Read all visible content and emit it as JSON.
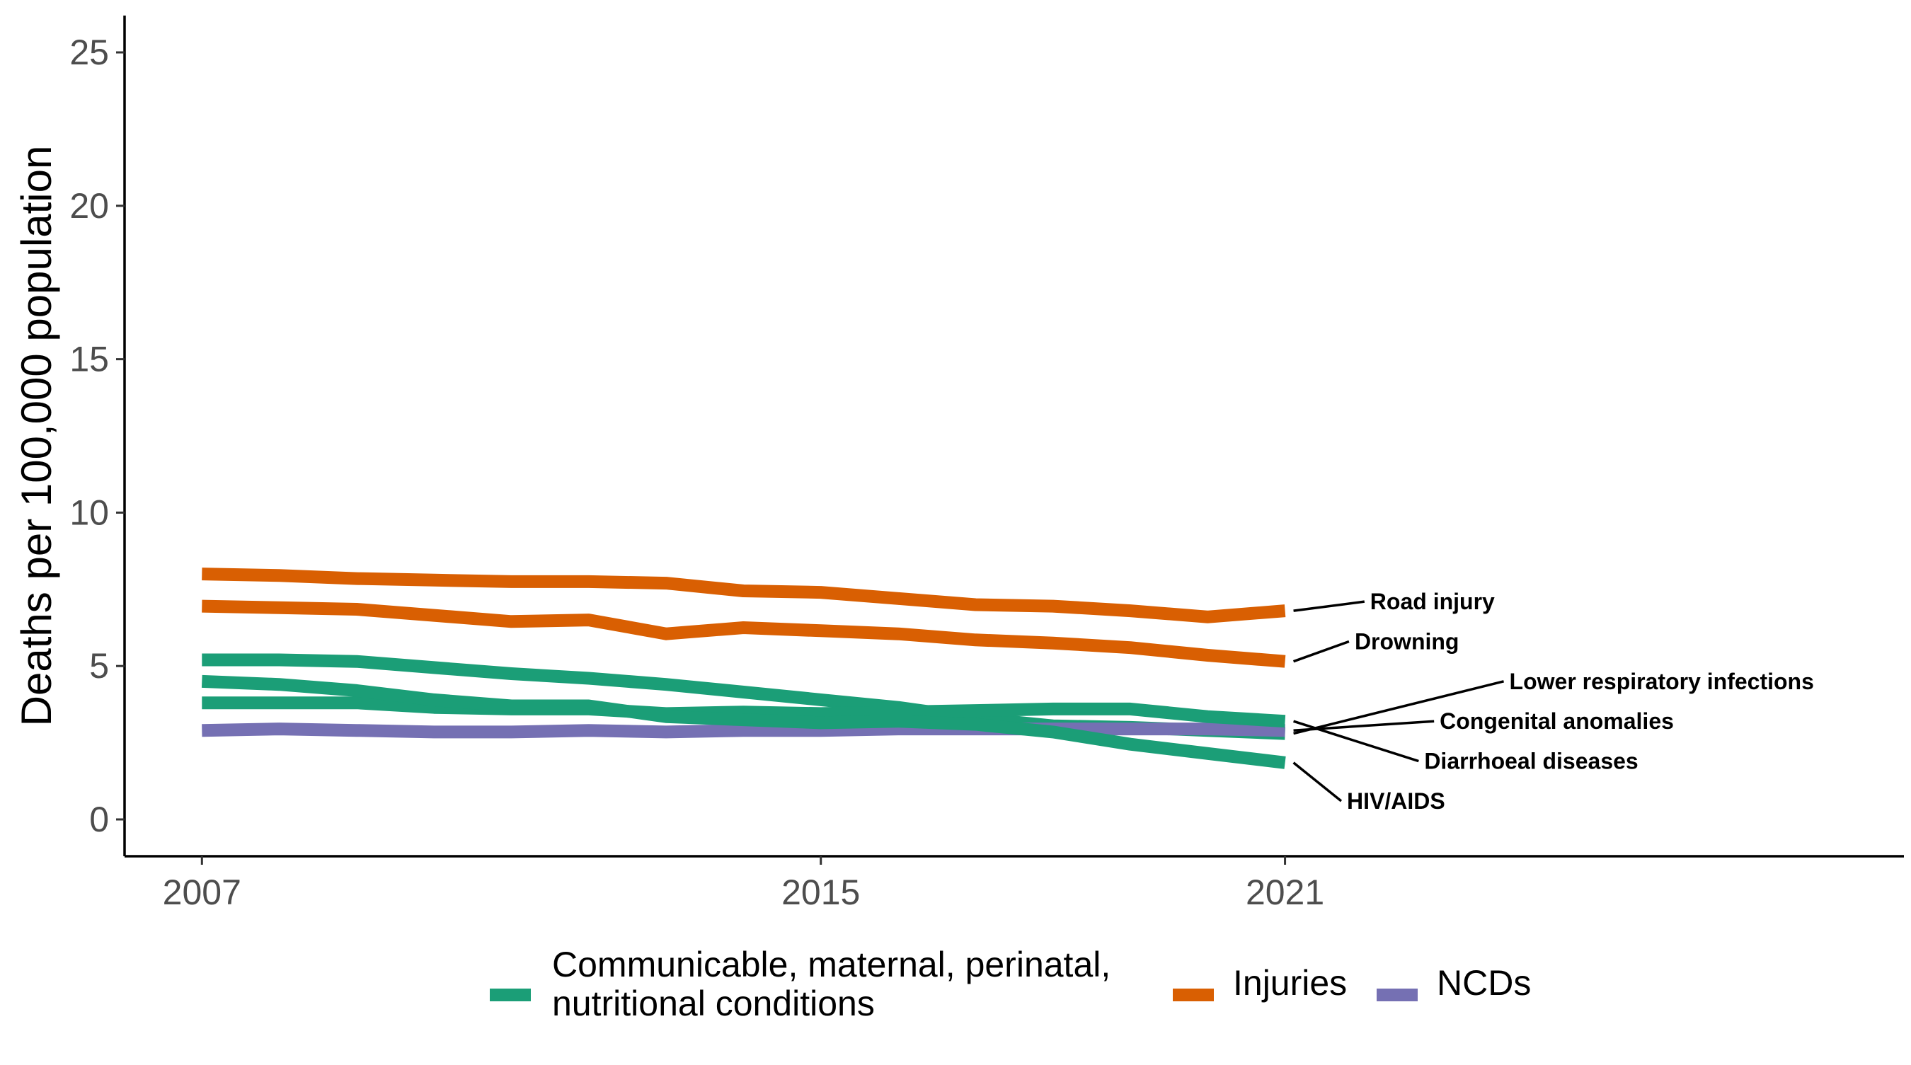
{
  "chart_data": {
    "type": "line",
    "title": "",
    "xlabel": "",
    "ylabel": "Deaths per 100,000 population",
    "x_ticks": [
      2007,
      2015,
      2021
    ],
    "y_ticks": [
      0,
      5,
      10,
      15,
      20,
      25
    ],
    "xlim": [
      2006,
      2029
    ],
    "ylim": [
      -1.2,
      26.2
    ],
    "grid": false,
    "legend_position": "bottom",
    "colors": {
      "communicable": "#1b9e77",
      "injuries": "#d95f02",
      "ncds": "#7570b3"
    },
    "legend": [
      {
        "group": "communicable",
        "label_line1": "Communicable, maternal, perinatal,",
        "label_line2": "nutritional conditions"
      },
      {
        "group": "injuries",
        "label_line1": "Injuries",
        "label_line2": ""
      },
      {
        "group": "ncds",
        "label_line1": "NCDs",
        "label_line2": ""
      }
    ],
    "x": [
      2007,
      2008,
      2009,
      2010,
      2011,
      2012,
      2013,
      2014,
      2015,
      2016,
      2017,
      2018,
      2019,
      2020,
      2021
    ],
    "series": [
      {
        "name": "Road injury",
        "group": "injuries",
        "values": [
          8.0,
          7.95,
          7.85,
          7.8,
          7.75,
          7.75,
          7.7,
          7.45,
          7.4,
          7.2,
          7.0,
          6.95,
          6.8,
          6.6,
          6.8
        ]
      },
      {
        "name": "Drowning",
        "group": "injuries",
        "values": [
          6.95,
          6.9,
          6.85,
          6.65,
          6.45,
          6.5,
          6.05,
          6.25,
          6.15,
          6.05,
          5.85,
          5.75,
          5.6,
          5.35,
          5.15
        ]
      },
      {
        "name": "Lower respiratory infections",
        "group": "communicable",
        "values": [
          5.2,
          5.2,
          5.15,
          4.95,
          4.75,
          4.6,
          4.4,
          4.15,
          3.9,
          3.65,
          3.3,
          3.05,
          3.0,
          2.9,
          2.8
        ]
      },
      {
        "name": "Congenital anomalies",
        "group": "ncds",
        "values": [
          2.9,
          2.95,
          2.9,
          2.85,
          2.85,
          2.9,
          2.85,
          2.9,
          2.9,
          2.95,
          2.95,
          2.95,
          2.95,
          2.95,
          2.9
        ]
      },
      {
        "name": "Diarrhoeal diseases",
        "group": "communicable",
        "values": [
          3.8,
          3.8,
          3.8,
          3.65,
          3.6,
          3.6,
          3.45,
          3.5,
          3.45,
          3.5,
          3.55,
          3.6,
          3.6,
          3.35,
          3.2
        ]
      },
      {
        "name": "HIV/AIDS",
        "group": "communicable",
        "values": [
          4.5,
          4.4,
          4.2,
          3.9,
          3.7,
          3.7,
          3.35,
          3.25,
          3.15,
          3.2,
          3.1,
          2.85,
          2.45,
          2.15,
          1.85
        ]
      }
    ],
    "line_labels": [
      {
        "series": "Road injury",
        "text": "Road injury",
        "x": 2022.1,
        "y": 7.1
      },
      {
        "series": "Drowning",
        "text": "Drowning",
        "x": 2021.9,
        "y": 5.8
      },
      {
        "series": "Lower respiratory infections",
        "text": "Lower respiratory infections",
        "x": 2023.9,
        "y": 4.5
      },
      {
        "series": "Congenital anomalies",
        "text": "Congenital anomalies",
        "x": 2023.0,
        "y": 3.2
      },
      {
        "series": "Diarrhoeal diseases",
        "text": "Diarrhoeal diseases",
        "x": 2022.8,
        "y": 1.9
      },
      {
        "series": "HIV/AIDS",
        "text": "HIV/AIDS",
        "x": 2021.8,
        "y": 0.6
      }
    ]
  }
}
